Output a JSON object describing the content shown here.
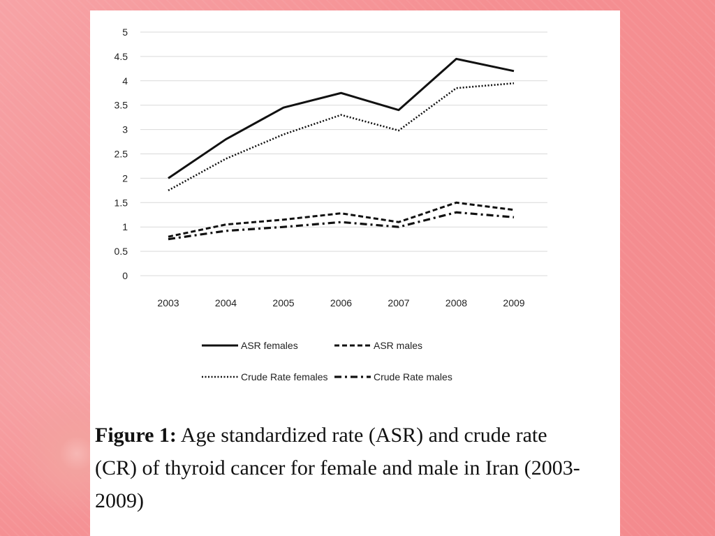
{
  "chart_data": {
    "type": "line",
    "x": [
      "2003",
      "2004",
      "2005",
      "2006",
      "2007",
      "2008",
      "2009"
    ],
    "ylim": [
      0,
      5
    ],
    "yticks": [
      "0",
      "0.5",
      "1",
      "1.5",
      "2",
      "2.5",
      "3",
      "3.5",
      "4",
      "4.5",
      "5"
    ],
    "grid": true,
    "legend_position": "bottom",
    "series": [
      {
        "name": "ASR females",
        "values": [
          2.0,
          2.8,
          3.45,
          3.75,
          3.4,
          4.45,
          4.2
        ],
        "style": "solid"
      },
      {
        "name": "ASR males",
        "values": [
          0.8,
          1.05,
          1.15,
          1.28,
          1.1,
          1.5,
          1.35
        ],
        "style": "dashed"
      },
      {
        "name": "Crude Rate females",
        "values": [
          1.75,
          2.4,
          2.9,
          3.3,
          2.98,
          3.85,
          3.95
        ],
        "style": "dotted"
      },
      {
        "name": "Crude Rate males",
        "values": [
          0.75,
          0.92,
          1.0,
          1.1,
          1.0,
          1.3,
          1.2
        ],
        "style": "dashdot"
      }
    ]
  },
  "caption": {
    "label": "Figure 1:",
    "text": " Age standardized rate (ASR) and crude rate (CR) of thyroid cancer for female and male in Iran (2003-2009)"
  }
}
